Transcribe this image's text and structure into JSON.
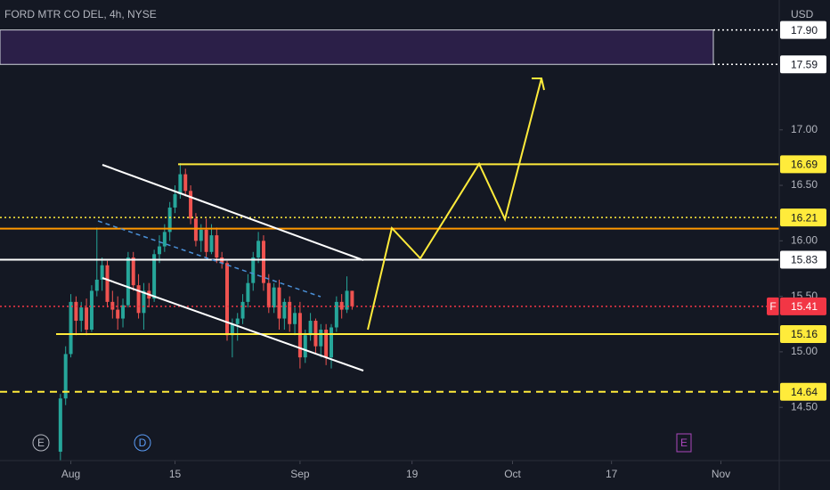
{
  "chart_data": {
    "type": "candlestick",
    "title": "FORD MTR CO DEL, 4h, NYSE",
    "currency": "USD",
    "symbol": "F",
    "open": [
      14.1,
      14.58,
      14.98,
      15.45,
      15.28,
      15.4,
      15.2,
      15.55,
      15.65,
      15.78,
      15.45,
      15.38,
      15.3,
      15.42,
      15.85,
      15.6,
      15.35,
      15.55,
      15.48,
      15.88,
      15.95,
      16.08,
      16.3,
      16.42,
      16.6,
      16.45,
      16.2,
      16.0,
      16.1,
      15.9,
      16.05,
      15.85,
      15.8,
      15.15,
      15.25,
      15.3,
      15.45,
      15.62,
      15.85,
      16.0,
      15.62,
      15.4,
      15.58,
      15.3,
      15.45,
      15.25,
      15.35,
      14.95,
      15.15,
      15.28,
      15.05,
      15.2,
      14.95,
      15.22,
      15.45,
      15.38,
      15.55
    ],
    "high": [
      14.62,
      15.05,
      15.52,
      15.5,
      15.45,
      15.48,
      15.6,
      16.12,
      15.85,
      15.82,
      15.55,
      15.5,
      15.48,
      15.9,
      15.9,
      15.7,
      15.62,
      15.62,
      15.92,
      16.05,
      16.15,
      16.35,
      16.5,
      16.7,
      16.65,
      16.5,
      16.25,
      16.15,
      16.2,
      16.15,
      16.12,
      15.9,
      15.82,
      15.3,
      15.35,
      15.52,
      15.7,
      15.9,
      16.08,
      16.05,
      15.7,
      15.62,
      15.65,
      15.48,
      15.5,
      15.4,
      15.45,
      15.2,
      15.35,
      15.3,
      15.25,
      15.25,
      15.25,
      15.5,
      15.52,
      15.68,
      15.55
    ],
    "low": [
      14.02,
      14.52,
      14.95,
      15.15,
      15.18,
      15.15,
      15.18,
      15.5,
      15.55,
      15.4,
      15.3,
      15.2,
      15.22,
      15.4,
      15.55,
      15.3,
      15.2,
      15.4,
      15.45,
      15.8,
      15.9,
      16.0,
      16.25,
      16.38,
      16.4,
      16.15,
      15.95,
      15.9,
      15.85,
      15.88,
      15.8,
      15.75,
      15.1,
      14.95,
      15.1,
      15.25,
      15.4,
      15.55,
      15.8,
      15.55,
      15.35,
      15.35,
      15.2,
      15.2,
      15.18,
      15.15,
      14.85,
      14.9,
      15.1,
      14.98,
      14.95,
      14.88,
      14.85,
      15.18,
      15.3,
      15.35,
      15.38
    ],
    "close": [
      14.58,
      14.98,
      15.45,
      15.28,
      15.4,
      15.2,
      15.55,
      15.65,
      15.78,
      15.45,
      15.38,
      15.3,
      15.42,
      15.85,
      15.6,
      15.35,
      15.55,
      15.48,
      15.88,
      15.95,
      16.08,
      16.3,
      16.42,
      16.6,
      16.45,
      16.2,
      16.0,
      16.1,
      15.9,
      16.05,
      15.85,
      15.8,
      15.15,
      15.25,
      15.3,
      15.45,
      15.62,
      15.85,
      16.0,
      15.62,
      15.4,
      15.58,
      15.3,
      15.45,
      15.25,
      15.35,
      14.95,
      15.15,
      15.28,
      15.05,
      15.2,
      14.95,
      15.22,
      15.45,
      15.38,
      15.55,
      15.41
    ],
    "up_color": "#26a69a",
    "down_color": "#ef5350",
    "xlim": [
      -11.6,
      138
    ],
    "xticks": [
      {
        "value": 2,
        "label": "Aug"
      },
      {
        "value": 22,
        "label": "15"
      },
      {
        "value": 46,
        "label": "Sep"
      },
      {
        "value": 67.5,
        "label": "19"
      },
      {
        "value": 86.8,
        "label": "Oct"
      },
      {
        "value": 105.8,
        "label": "17"
      },
      {
        "value": 126.8,
        "label": "Nov"
      }
    ],
    "ylim": [
      14.02,
      18.17
    ],
    "yticks": [
      {
        "value": 17,
        "label": "17.00"
      },
      {
        "value": 16.5,
        "label": "16.50"
      },
      {
        "value": 16,
        "label": "16.00"
      },
      {
        "value": 15.5,
        "label": "15.50"
      },
      {
        "value": 15,
        "label": "15.00"
      },
      {
        "value": 14.5,
        "label": "14.50"
      }
    ],
    "levels": [
      {
        "value": 17.9,
        "label": "17.90",
        "color": "#ffffff",
        "style": "dotted"
      },
      {
        "value": 17.59,
        "label": "17.59",
        "color": "#ffffff",
        "style": "dotted"
      },
      {
        "value": 16.69,
        "label": "16.69",
        "color": "#ffeb3b",
        "style": "solid"
      },
      {
        "value": 16.21,
        "label": "16.21",
        "color": "#ffeb3b",
        "style": "dotted"
      },
      {
        "value": 16.11,
        "color": "#ff9800",
        "style": "solid"
      },
      {
        "value": 15.83,
        "label": "15.83",
        "color": "#ffffff",
        "style": "solid"
      },
      {
        "value": 15.41,
        "label": "15.41",
        "color": "#f23645",
        "style": "dotted"
      },
      {
        "value": 15.16,
        "label": "15.16",
        "color": "#ffeb3b",
        "style": "solid"
      },
      {
        "value": 14.64,
        "label": "14.64",
        "color": "#ffeb3b",
        "style": "dashed"
      }
    ],
    "zones": [
      {
        "from": 17.59,
        "to": 17.9,
        "color": "#2b1f48"
      }
    ],
    "events": [
      {
        "label": "E",
        "color": "#b2b5be"
      },
      {
        "label": "D",
        "color": "#5b9cf6"
      },
      {
        "label": "E",
        "color": "#ab47bc"
      }
    ]
  }
}
